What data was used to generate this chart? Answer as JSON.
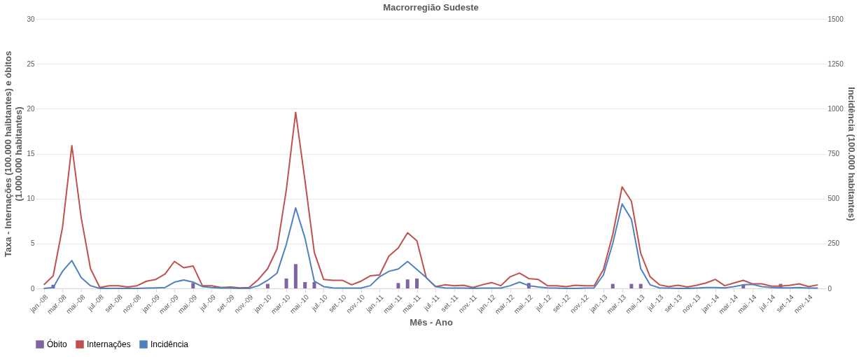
{
  "chart_data": {
    "type": "line",
    "title": "Macrorregião Sudeste",
    "xlabel": "Mês - Ano",
    "ylabel": "Taxa - Internações (100.000 haibtantes) e óbitos (1.000.000 habitantes)",
    "y2label": "Incidência (100.000 habitantes)",
    "categories": [
      "jan.-08",
      null,
      "mar.-08",
      null,
      "mai.-08",
      null,
      "jul.-08",
      null,
      "set.-08",
      null,
      "nov.-08",
      null,
      "jan.-09",
      null,
      "mar.-09",
      null,
      "mai.-09",
      null,
      "jul.-09",
      null,
      "set.-09",
      null,
      "nov.-09",
      null,
      "jan.-10",
      null,
      "mar.-10",
      null,
      "mai.-10",
      null,
      "jul.-10",
      null,
      "set.-10",
      null,
      "nov.-10",
      null,
      "jan.-11",
      null,
      "mar.-11",
      null,
      "mai.-11",
      null,
      "jul.-11",
      null,
      "set.-11",
      null,
      "nov.-11",
      null,
      "jan.-12",
      null,
      "mar.-12",
      null,
      "mai.-12",
      null,
      "jul.-12",
      null,
      "set.-12",
      null,
      "nov.-12",
      null,
      "jan.-13",
      null,
      "mar.-13",
      null,
      "mai.-13",
      null,
      "jul.-13",
      null,
      "set.-13",
      null,
      "nov.-13",
      null,
      "jan.-14",
      null,
      "mar.-14",
      null,
      "mai.-14",
      null,
      "jul.-14",
      null,
      "set.-14",
      null,
      "nov.-14",
      null
    ],
    "series": [
      {
        "name": "Óbito",
        "type": "bar",
        "color": "#8064a2",
        "values": [
          null,
          0.4,
          null,
          null,
          null,
          null,
          null,
          null,
          null,
          null,
          null,
          null,
          null,
          null,
          null,
          null,
          0.6,
          null,
          null,
          null,
          null,
          null,
          null,
          null,
          0.5,
          null,
          1.1,
          2.7,
          0.7,
          0.7,
          null,
          null,
          null,
          null,
          null,
          null,
          null,
          null,
          0.6,
          1.0,
          1.1,
          null,
          null,
          null,
          null,
          null,
          null,
          null,
          null,
          null,
          null,
          null,
          0.6,
          null,
          null,
          null,
          null,
          null,
          null,
          null,
          null,
          0.5,
          null,
          0.5,
          0.5,
          null,
          null,
          null,
          null,
          null,
          null,
          null,
          null,
          null,
          null,
          0.4,
          null,
          null,
          null,
          0.5,
          null,
          null,
          null,
          null
        ]
      },
      {
        "name": "Internações",
        "color": "#c0504d",
        "values": [
          0.4,
          1.4,
          6.8,
          15.9,
          7.9,
          2.2,
          0.1,
          0.3,
          0.3,
          0.15,
          0.3,
          0.8,
          1.0,
          1.6,
          3.0,
          2.3,
          2.5,
          0.3,
          0.3,
          0.1,
          0.15,
          0.05,
          0.1,
          1.0,
          2.2,
          4.4,
          11.0,
          19.6,
          12.0,
          4.0,
          1.0,
          0.9,
          0.9,
          0.4,
          0.8,
          1.4,
          1.5,
          3.6,
          4.5,
          6.2,
          5.3,
          1.2,
          0.2,
          0.4,
          0.3,
          0.35,
          0.1,
          0.4,
          0.65,
          0.3,
          1.3,
          1.7,
          1.1,
          1.0,
          0.3,
          0.3,
          0.2,
          0.35,
          0.3,
          0.3,
          2.1,
          6.0,
          11.3,
          9.7,
          3.9,
          1.3,
          0.4,
          0.2,
          0.35,
          0.15,
          0.35,
          0.6,
          1.0,
          0.3,
          0.6,
          0.9,
          0.5,
          0.5,
          0.25,
          0.25,
          0.35,
          0.5,
          0.2,
          0.4
        ]
      },
      {
        "name": "Incidência",
        "axis": "y2",
        "color": "#4f81bd",
        "values": [
          0,
          5,
          95,
          155,
          60,
          15,
          0,
          0,
          0,
          0,
          0,
          2,
          3,
          5,
          35,
          47,
          35,
          10,
          5,
          2,
          2,
          0,
          0,
          15,
          45,
          85,
          245,
          448,
          280,
          40,
          10,
          3,
          2,
          2,
          2,
          15,
          65,
          95,
          108,
          150,
          105,
          60,
          10,
          3,
          2,
          2,
          0,
          2,
          2,
          2,
          15,
          35,
          15,
          8,
          3,
          2,
          0,
          0,
          2,
          3,
          75,
          250,
          470,
          385,
          110,
          20,
          3,
          2,
          0,
          0,
          2,
          5,
          5,
          3,
          10,
          20,
          22,
          10,
          5,
          3,
          3,
          5,
          2,
          2
        ]
      }
    ],
    "ylim": [
      0,
      30
    ],
    "yticks": [
      0,
      5,
      10,
      15,
      20,
      25,
      30
    ],
    "y2lim": [
      0,
      1500
    ],
    "y2ticks": [
      0,
      250,
      500,
      750,
      1000,
      1250,
      1500
    ],
    "grid": "y",
    "legend": "bottom",
    "marker": "none",
    "line_style": "solid"
  }
}
